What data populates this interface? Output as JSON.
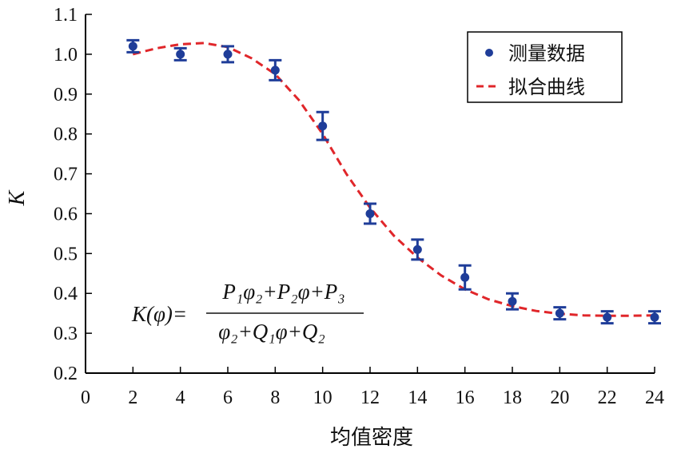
{
  "chart_data": {
    "type": "scatter",
    "xlabel": "均值密度",
    "ylabel": "K",
    "xlim": [
      0,
      24
    ],
    "ylim": [
      0.2,
      1.1
    ],
    "xticks": [
      "0",
      "2",
      "4",
      "6",
      "8",
      "10",
      "12",
      "14",
      "16",
      "18",
      "20",
      "22",
      "24"
    ],
    "yticks": [
      "0.2",
      "0.3",
      "0.4",
      "0.5",
      "0.6",
      "0.7",
      "0.8",
      "0.9",
      "1.0",
      "1.1"
    ],
    "legend_position": "top-right",
    "series": [
      {
        "name": "测量数据",
        "kind": "points_with_error_bars",
        "color": "#1f3d99",
        "x": [
          2,
          4,
          6,
          8,
          10,
          12,
          14,
          16,
          18,
          20,
          22,
          24
        ],
        "y": [
          1.02,
          1.0,
          1.0,
          0.96,
          0.82,
          0.6,
          0.51,
          0.44,
          0.38,
          0.35,
          0.34,
          0.34
        ],
        "err": [
          0.015,
          0.015,
          0.02,
          0.025,
          0.035,
          0.025,
          0.025,
          0.03,
          0.02,
          0.015,
          0.015,
          0.015
        ]
      },
      {
        "name": "拟合曲线",
        "kind": "dashed_line",
        "color": "#e0262a",
        "x": [
          2,
          3,
          4,
          5,
          6,
          7,
          8,
          9,
          10,
          11,
          12,
          13,
          14,
          15,
          16,
          17,
          18,
          19,
          20,
          21,
          22,
          23,
          24
        ],
        "y": [
          1.0,
          1.015,
          1.025,
          1.028,
          1.018,
          0.99,
          0.95,
          0.885,
          0.8,
          0.7,
          0.615,
          0.545,
          0.49,
          0.445,
          0.41,
          0.385,
          0.368,
          0.356,
          0.349,
          0.345,
          0.344,
          0.344,
          0.345
        ]
      }
    ],
    "annotation": {
      "lhs": "K(φ)=",
      "numerator": "P₁φ₂+P₂φ+P₃",
      "denominator": "φ₂+Q₁φ+Q₂"
    }
  }
}
